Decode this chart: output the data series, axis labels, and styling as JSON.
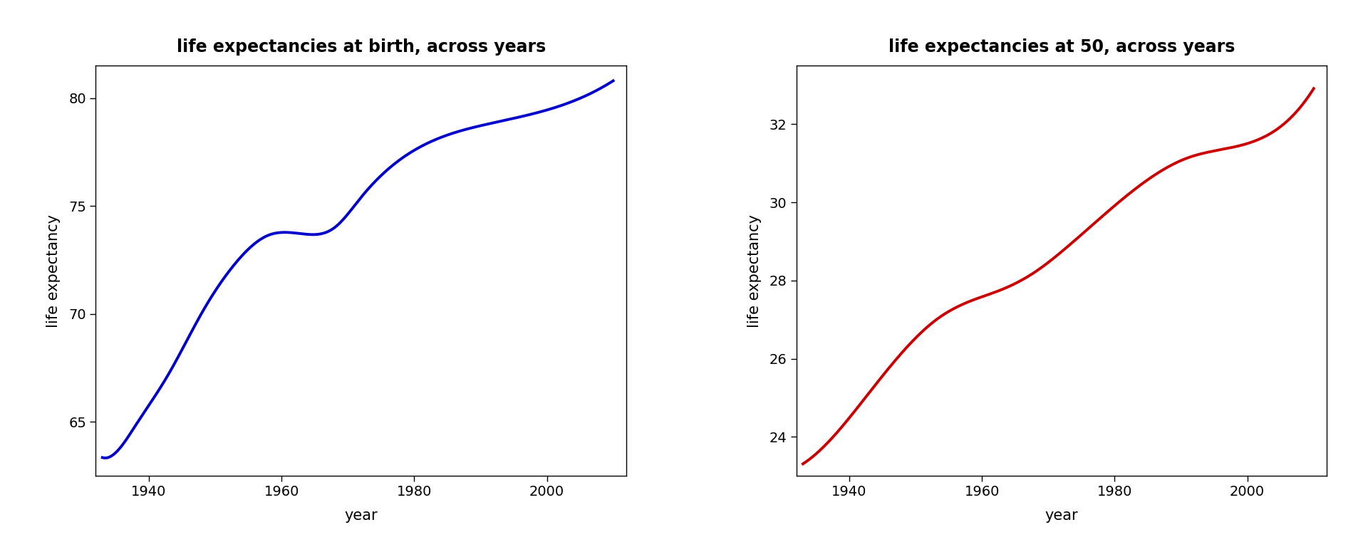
{
  "title1": "life expectancies at birth, across years",
  "title2": "life expectancies at 50, across years",
  "xlabel": "year",
  "ylabel": "life expectancy",
  "color1": "#0000CC",
  "color2": "#CC0000",
  "bg_color": "#FFFFFF",
  "years_birth": [
    1933,
    1934,
    1935,
    1936,
    1937,
    1938,
    1939,
    1940,
    1941,
    1942,
    1943,
    1944,
    1945,
    1946,
    1947,
    1948,
    1949,
    1950,
    1951,
    1952,
    1953,
    1954,
    1955,
    1956,
    1957,
    1958,
    1959,
    1960,
    1961,
    1962,
    1963,
    1964,
    1965,
    1966,
    1967,
    1968,
    1969,
    1970,
    1971,
    1972,
    1973,
    1974,
    1975,
    1976,
    1977,
    1978,
    1979,
    1980,
    1981,
    1982,
    1983,
    1984,
    1985,
    1986,
    1987,
    1988,
    1989,
    1990,
    1991,
    1992,
    1993,
    1994,
    1995,
    1996,
    1997,
    1998,
    1999,
    2000,
    2001,
    2002,
    2003,
    2004,
    2005,
    2006,
    2007,
    2008,
    2009,
    2010
  ],
  "le_birth": [
    63.3,
    63.6,
    63.9,
    62.9,
    64.4,
    65.3,
    65.4,
    65.2,
    66.8,
    67.9,
    66.6,
    66.8,
    67.9,
    69.4,
    69.7,
    70.2,
    70.7,
    71.1,
    71.4,
    72.0,
    72.0,
    72.9,
    73.1,
    73.1,
    73.2,
    73.9,
    74.2,
    73.1,
    74.2,
    73.8,
    73.4,
    73.7,
    73.7,
    73.8,
    74.2,
    73.9,
    74.2,
    74.7,
    75.0,
    75.1,
    75.3,
    75.9,
    76.6,
    76.7,
    77.2,
    77.3,
    77.8,
    77.4,
    77.8,
    78.1,
    78.1,
    78.2,
    78.2,
    78.3,
    78.3,
    78.3,
    78.5,
    78.8,
    78.9,
    79.1,
    78.8,
    79.0,
    78.9,
    79.1,
    79.4,
    79.5,
    79.4,
    79.3,
    79.5,
    79.5,
    79.6,
    79.9,
    80.1,
    80.2,
    80.4,
    80.3,
    80.6,
    80.8
  ],
  "years_50": [
    1933,
    1934,
    1935,
    1936,
    1937,
    1938,
    1939,
    1940,
    1941,
    1942,
    1943,
    1944,
    1945,
    1946,
    1947,
    1948,
    1949,
    1950,
    1951,
    1952,
    1953,
    1954,
    1955,
    1956,
    1957,
    1958,
    1959,
    1960,
    1961,
    1962,
    1963,
    1964,
    1965,
    1966,
    1967,
    1968,
    1969,
    1970,
    1971,
    1972,
    1973,
    1974,
    1975,
    1976,
    1977,
    1978,
    1979,
    1980,
    1981,
    1982,
    1983,
    1984,
    1985,
    1986,
    1987,
    1988,
    1989,
    1990,
    1991,
    1992,
    1993,
    1994,
    1995,
    1996,
    1997,
    1998,
    1999,
    2000,
    2001,
    2002,
    2003,
    2004,
    2005,
    2006,
    2007,
    2008,
    2009,
    2010
  ],
  "le_50": [
    23.4,
    23.6,
    23.7,
    23.5,
    23.9,
    24.2,
    24.3,
    24.2,
    24.8,
    25.2,
    24.7,
    24.8,
    25.1,
    25.7,
    25.9,
    26.2,
    26.3,
    26.8,
    26.8,
    27.2,
    27.2,
    27.7,
    27.7,
    27.6,
    27.5,
    27.9,
    28.0,
    27.3,
    27.7,
    27.5,
    27.3,
    27.5,
    27.5,
    27.5,
    27.8,
    27.5,
    27.8,
    28.2,
    28.5,
    28.6,
    28.8,
    29.1,
    29.6,
    29.7,
    30.0,
    30.0,
    30.3,
    30.0,
    30.3,
    30.6,
    30.5,
    30.6,
    30.6,
    30.7,
    30.7,
    30.7,
    30.8,
    31.0,
    31.1,
    31.2,
    31.0,
    31.1,
    31.0,
    31.2,
    31.4,
    31.5,
    31.4,
    31.4,
    31.6,
    31.6,
    31.7,
    31.9,
    32.1,
    32.2,
    32.4,
    32.4,
    32.6,
    32.9
  ],
  "xlim1": [
    1932,
    2012
  ],
  "xlim2": [
    1932,
    2012
  ],
  "ylim1": [
    62.5,
    81.5
  ],
  "ylim2": [
    23.0,
    33.5
  ],
  "xticks": [
    1940,
    1960,
    1980,
    2000
  ],
  "yticks1": [
    65,
    70,
    75,
    80
  ],
  "yticks2": [
    24,
    26,
    28,
    30,
    32
  ],
  "linewidth": 2.8,
  "title_fontsize": 17,
  "label_fontsize": 15,
  "tick_fontsize": 14,
  "smooth_factor_birth": 8.0,
  "smooth_factor_50": 6.0
}
